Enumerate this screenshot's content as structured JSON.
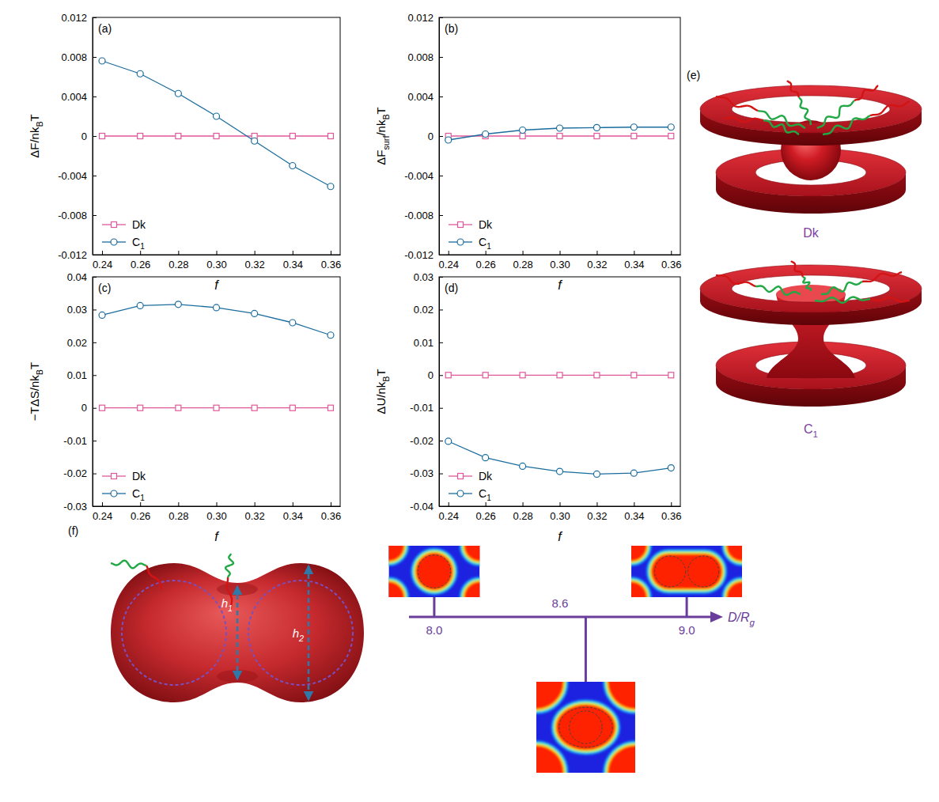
{
  "chart_data": [
    {
      "type": "line",
      "panel_label": "(a)",
      "x_label": "f",
      "y_label": "ΔF/nkBT",
      "x": [
        0.24,
        0.26,
        0.28,
        0.3,
        0.32,
        0.34,
        0.36
      ],
      "xlim": [
        0.235,
        0.365
      ],
      "xticks": [
        0.24,
        0.26,
        0.28,
        {
          "value": 0.3,
          "label": "0.30"
        },
        0.32,
        0.34,
        0.36
      ],
      "ylim": [
        -0.012,
        0.012
      ],
      "yticks": [
        -0.012,
        -0.008,
        -0.004,
        0,
        0.004,
        0.008,
        0.012
      ],
      "legend": "lower left",
      "series": [
        {
          "name": "Dk",
          "color": "#e2579b",
          "marker": "square",
          "values": [
            0,
            0,
            0,
            0,
            0,
            0,
            0
          ]
        },
        {
          "name": "C1",
          "color": "#1b6d9e",
          "marker": "circle",
          "values": [
            0.0076,
            0.0063,
            0.0043,
            0.002,
            -0.0005,
            -0.003,
            -0.0051
          ]
        }
      ]
    },
    {
      "type": "line",
      "panel_label": "(b)",
      "x_label": "f",
      "y_label": "ΔFsurf/nkBT",
      "x": [
        0.24,
        0.26,
        0.28,
        0.3,
        0.32,
        0.34,
        0.36
      ],
      "xlim": [
        0.235,
        0.365
      ],
      "xticks": [
        0.24,
        0.26,
        0.28,
        {
          "value": 0.3,
          "label": "0.30"
        },
        0.32,
        0.34,
        0.36
      ],
      "ylim": [
        -0.012,
        0.012
      ],
      "yticks": [
        -0.012,
        -0.008,
        -0.004,
        0,
        0.004,
        0.008,
        0.012
      ],
      "legend": "lower left",
      "series": [
        {
          "name": "Dk",
          "color": "#e2579b",
          "marker": "square",
          "values": [
            0,
            0,
            0,
            0,
            0,
            0,
            0
          ]
        },
        {
          "name": "C1",
          "color": "#1b6d9e",
          "marker": "circle",
          "values": [
            -0.0004,
            0.0002,
            0.0006,
            0.0008,
            0.00085,
            0.0009,
            0.0009
          ]
        }
      ]
    },
    {
      "type": "line",
      "panel_label": "(c)",
      "x_label": "f",
      "y_label": "−TΔS/nkBT",
      "x": [
        0.24,
        0.26,
        0.28,
        0.3,
        0.32,
        0.34,
        0.36
      ],
      "xlim": [
        0.235,
        0.365
      ],
      "xticks": [
        0.24,
        0.26,
        0.28,
        {
          "value": 0.3,
          "label": "0.30"
        },
        0.32,
        0.34,
        0.36
      ],
      "ylim": [
        -0.03,
        0.04
      ],
      "yticks": [
        -0.03,
        -0.02,
        -0.01,
        0,
        0.01,
        0.02,
        0.03,
        0.04
      ],
      "legend": "lower left",
      "series": [
        {
          "name": "Dk",
          "color": "#e2579b",
          "marker": "square",
          "values": [
            0,
            0,
            0,
            0,
            0,
            0,
            0
          ]
        },
        {
          "name": "C1",
          "color": "#1b6d9e",
          "marker": "circle",
          "values": [
            0.0283,
            0.0312,
            0.0316,
            0.0306,
            0.0288,
            0.026,
            0.0222
          ]
        }
      ]
    },
    {
      "type": "line",
      "panel_label": "(d)",
      "x_label": "f",
      "y_label": "ΔU/nkBT",
      "x": [
        0.24,
        0.26,
        0.28,
        0.3,
        0.32,
        0.34,
        0.36
      ],
      "xlim": [
        0.235,
        0.365
      ],
      "xticks": [
        0.24,
        0.26,
        0.28,
        {
          "value": 0.3,
          "label": "0.30"
        },
        0.32,
        0.34,
        0.36
      ],
      "ylim": [
        -0.04,
        0.03
      ],
      "yticks": [
        -0.04,
        -0.03,
        -0.02,
        -0.01,
        0,
        0.01,
        0.02,
        0.03
      ],
      "legend": "lower left",
      "series": [
        {
          "name": "Dk",
          "color": "#e2579b",
          "marker": "square",
          "values": [
            0,
            0,
            0,
            0,
            0,
            0,
            0
          ]
        },
        {
          "name": "C1",
          "color": "#1b6d9e",
          "marker": "circle",
          "values": [
            -0.0202,
            -0.0252,
            -0.0278,
            -0.0294,
            -0.0302,
            -0.0299,
            -0.0283
          ]
        }
      ]
    }
  ],
  "illustrations": {
    "panel_label": "(e)",
    "labels": [
      "Dk",
      "C1"
    ]
  },
  "diagram": {
    "panel_label": "(f)",
    "height_labels": [
      "h1",
      "h2"
    ],
    "axis": {
      "title": "D/Rg",
      "xlim": [
        7.9,
        9.1
      ],
      "ticks": [
        {
          "value": 8,
          "label": "8.0"
        },
        8.6,
        {
          "value": 9,
          "label": "9.0"
        }
      ]
    }
  }
}
